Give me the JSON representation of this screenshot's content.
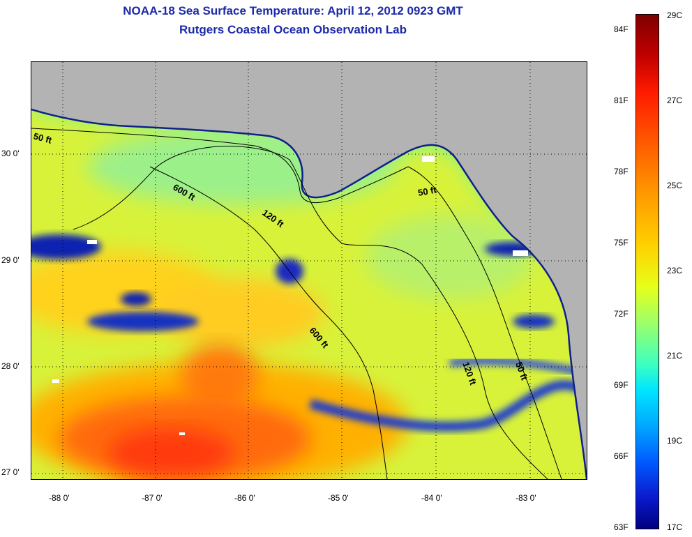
{
  "title_line1": "NOAA-18 Sea Surface Temperature:  April 12, 2012 0923 GMT",
  "title_line2": "Rutgers Coastal Ocean Observation Lab",
  "map": {
    "lat_labels": [
      "30 0'",
      "29 0'",
      "28 0'",
      "27 0'"
    ],
    "lon_labels": [
      "-88 0'",
      "-87 0'",
      "-86 0'",
      "-85 0'",
      "-84 0'",
      "-83 0'"
    ],
    "contours": {
      "c50_west": "50 ft",
      "c50_east": "50 ft",
      "c120": "120 ft",
      "c600_upper": "600 ft",
      "c600_lower": "600 ft",
      "c120_lower": "120 ft",
      "c50_lower": "50 ft"
    },
    "colors": {
      "land": "#b3b3b3",
      "frame": "#000000"
    }
  },
  "colorbar": {
    "fahrenheit": [
      "84F",
      "81F",
      "78F",
      "75F",
      "72F",
      "69F",
      "66F",
      "63F"
    ],
    "celsius": [
      "29C",
      "27C",
      "25C",
      "23C",
      "21C",
      "19C",
      "17C"
    ]
  }
}
